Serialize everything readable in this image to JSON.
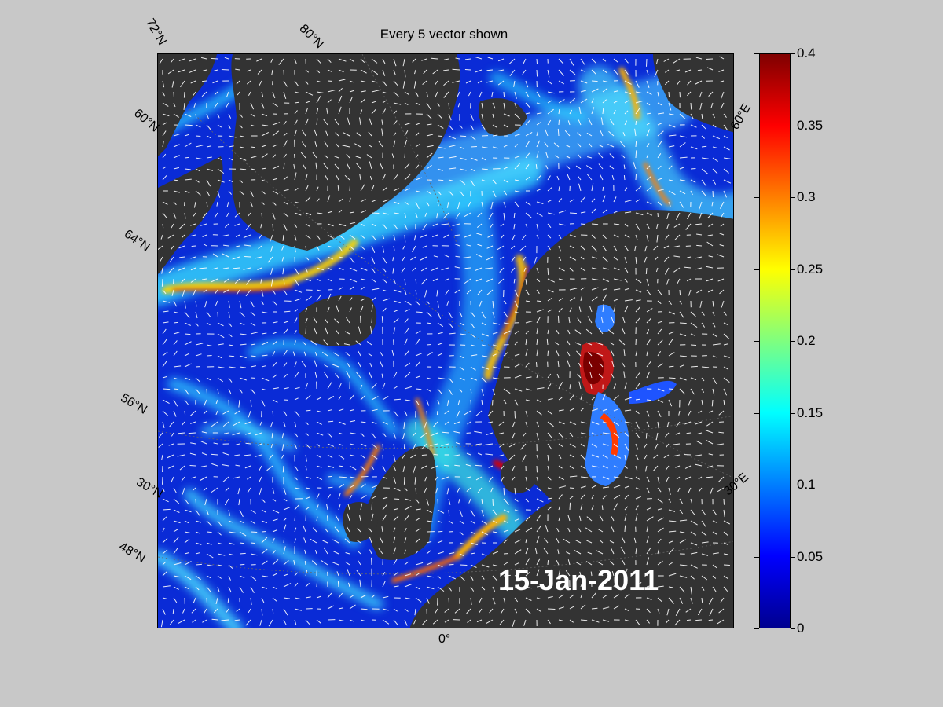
{
  "title": "Every 5 vector shown",
  "date": "15-Jan-2011",
  "grid_labels": {
    "lat_72": "72°N",
    "lat_80": "80°N",
    "lat_60_top": "60°N",
    "lat_64": "64°N",
    "lat_56": "56°N",
    "lat_30": "30°N",
    "lat_48": "48°N",
    "lon_60e": "60°E",
    "lon_30e": "30°E",
    "lon_0": "0°"
  },
  "colorbar": {
    "min": 0,
    "max": 0.4,
    "ticks": [
      "0",
      "0.05",
      "0.1",
      "0.15",
      "0.2",
      "0.25",
      "0.3",
      "0.35",
      "0.4"
    ],
    "colormap": [
      "#00008f",
      "#0000ff",
      "#007fff",
      "#00ffff",
      "#7fff7f",
      "#ffff00",
      "#ff7f00",
      "#ff0000",
      "#7f0000"
    ]
  },
  "colors": {
    "land": "#333333",
    "ocean_base": "#0a2bd6",
    "figure_background": "#c8c8c8"
  }
}
